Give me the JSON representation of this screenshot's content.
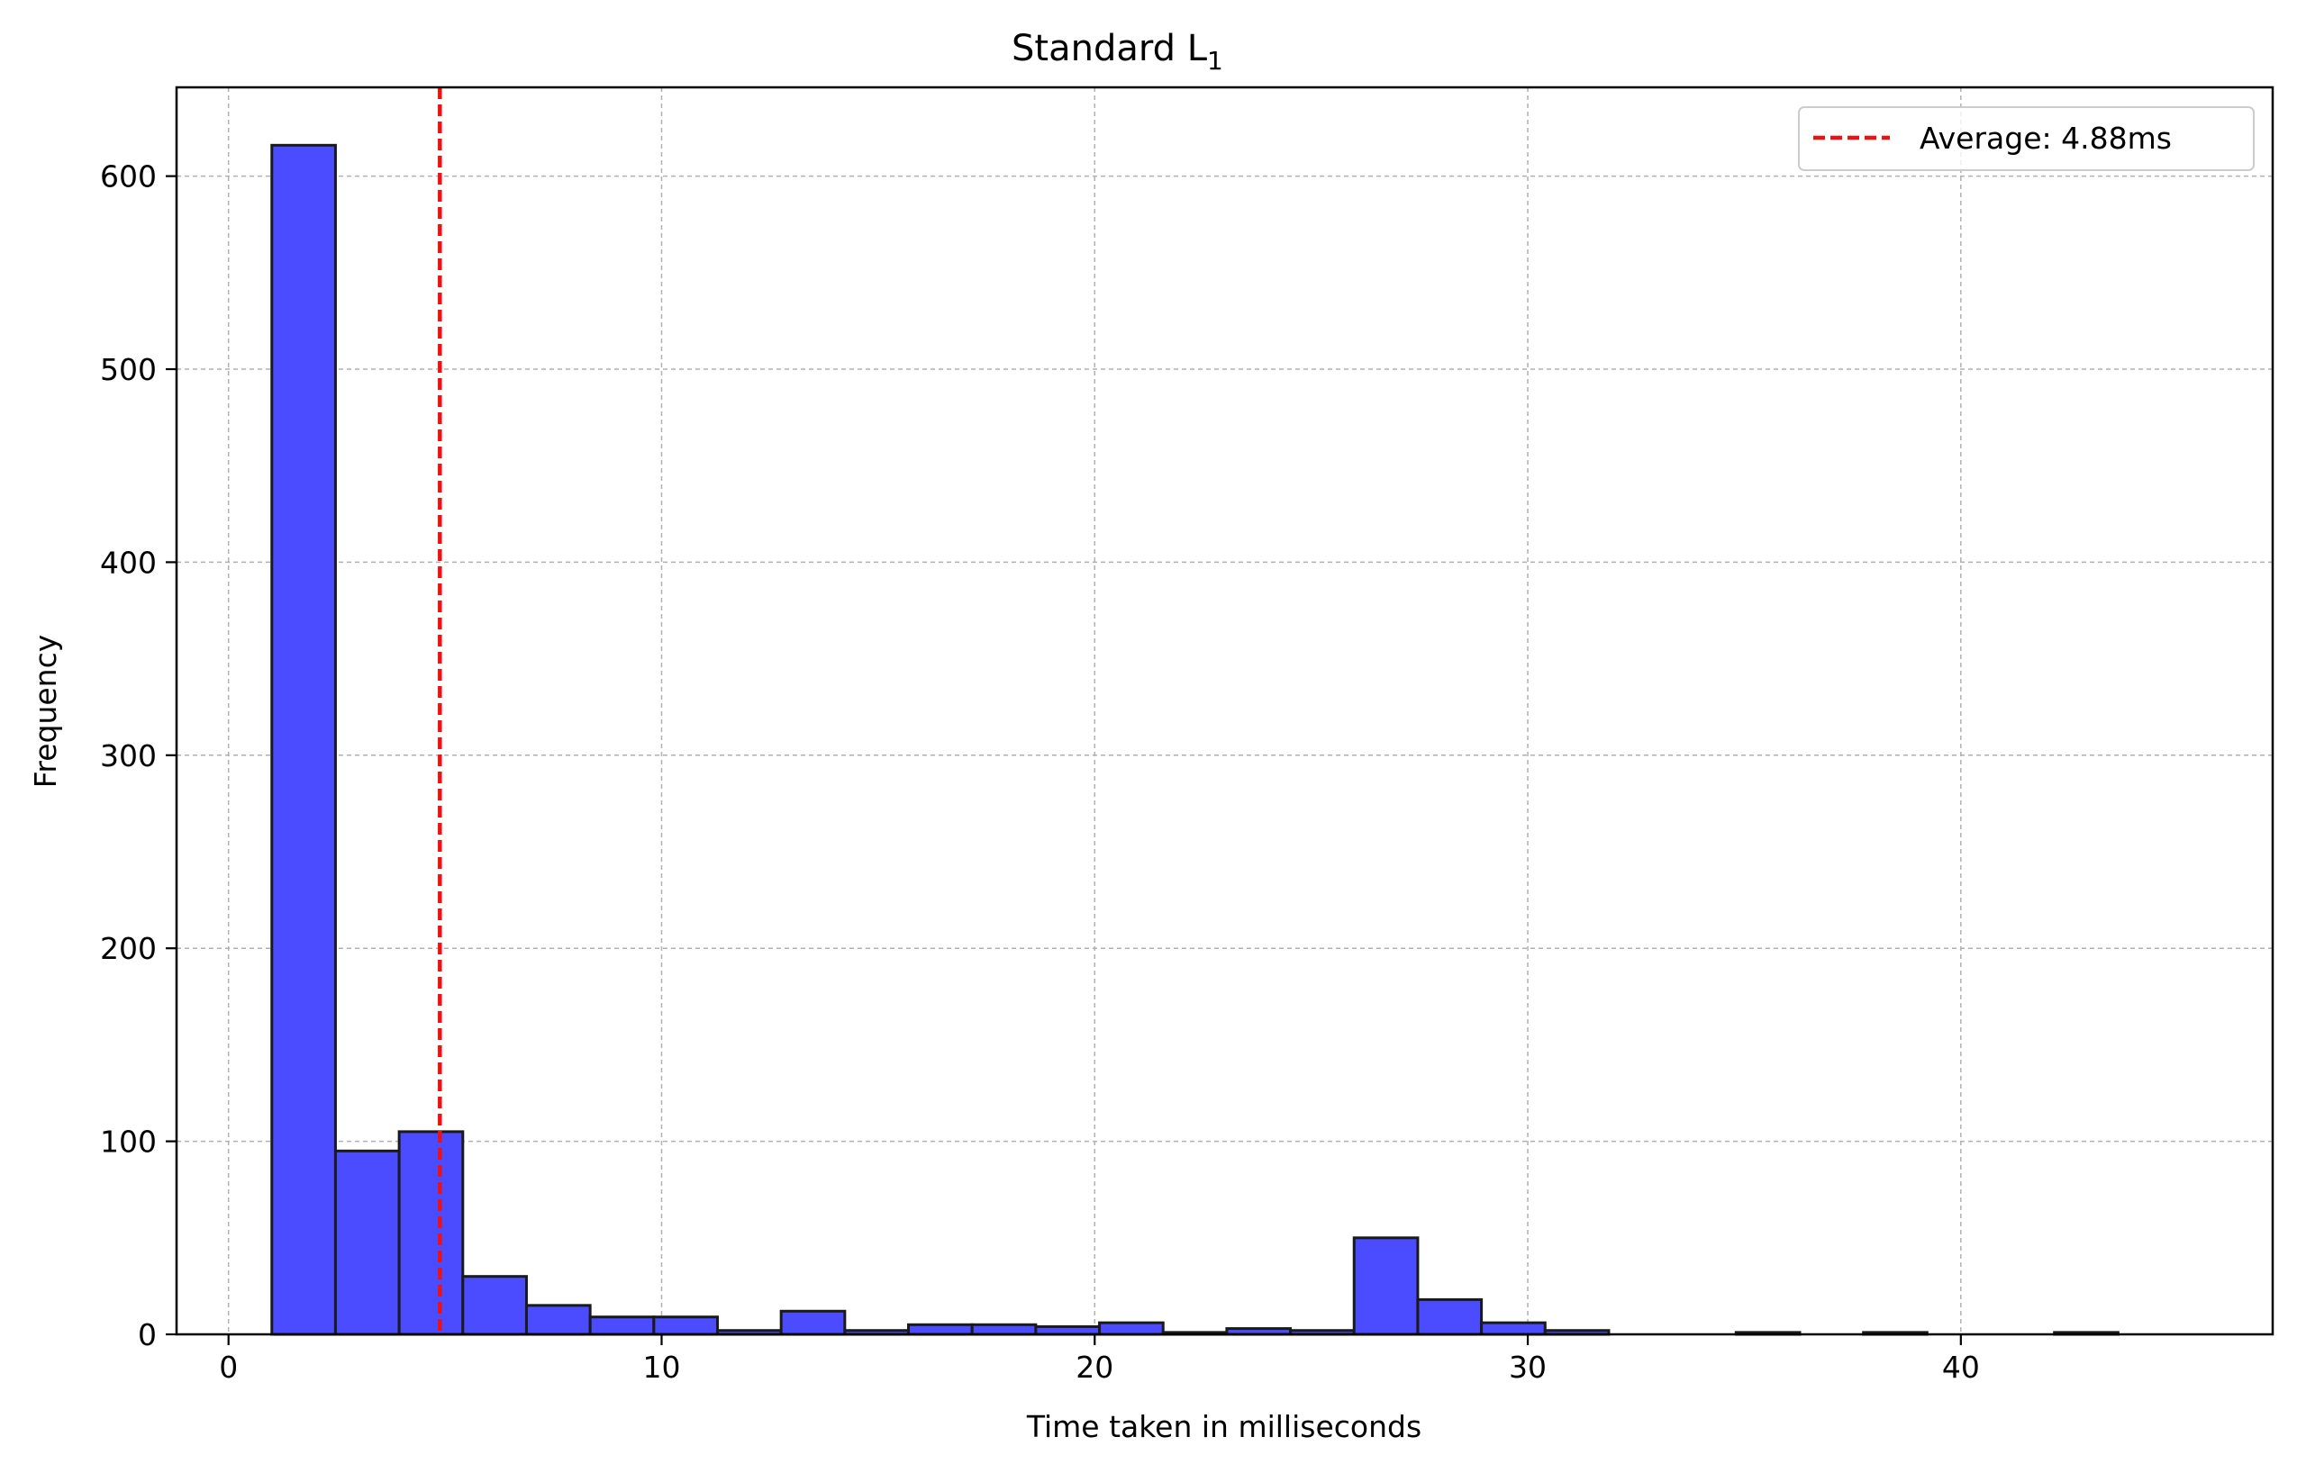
{
  "chart_data": {
    "type": "bar",
    "title": "Standard L",
    "title_subscript": "1",
    "xlabel": "Time taken in milliseconds",
    "ylabel": "Frequency",
    "xlim": [
      -1.2,
      47.2
    ],
    "ylim": [
      0,
      646
    ],
    "xticks": [
      0,
      10,
      20,
      30,
      40
    ],
    "yticks": [
      0,
      100,
      200,
      300,
      400,
      500,
      600
    ],
    "grid": true,
    "legend_position": "top-right",
    "bar_color": "#4b4bff",
    "bar_edge_color": "#1a1a1a",
    "bin_edges": [
      1.0,
      2.47,
      3.94,
      5.41,
      6.88,
      8.35,
      9.82,
      11.29,
      12.76,
      14.23,
      15.7,
      17.17,
      18.64,
      20.11,
      21.58,
      23.05,
      24.52,
      25.99,
      27.46,
      28.93,
      30.4,
      31.87,
      33.34,
      34.81,
      36.28,
      37.75,
      39.22,
      40.69,
      42.16,
      43.63,
      45.1
    ],
    "counts": [
      616,
      95,
      105,
      30,
      15,
      9,
      9,
      2,
      12,
      2,
      5,
      5,
      4,
      6,
      1,
      3,
      2,
      50,
      18,
      6,
      2,
      0,
      0,
      1,
      0,
      1,
      0,
      0,
      1,
      0
    ],
    "average_line": {
      "label": "Average: 4.88ms",
      "x": 4.88,
      "color": "#ee1111"
    }
  }
}
